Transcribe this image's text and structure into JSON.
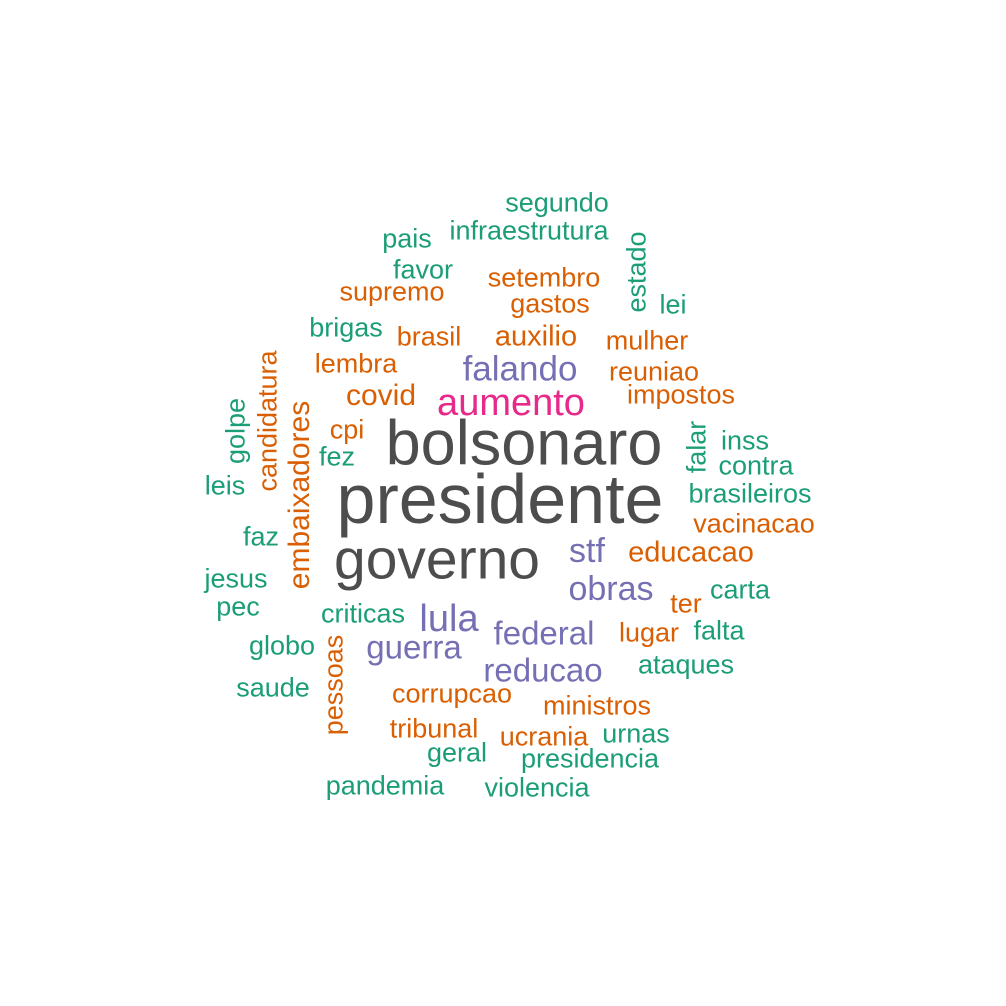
{
  "colors": {
    "dark": "#4d4d4d",
    "magenta": "#e7298a",
    "purple": "#7570b3",
    "orange": "#d95f02",
    "green": "#1b9e77"
  },
  "words": [
    {
      "text": "presidente",
      "color": "dark"
    },
    {
      "text": "bolsonaro",
      "color": "dark"
    },
    {
      "text": "governo",
      "color": "dark"
    },
    {
      "text": "aumento",
      "color": "magenta"
    },
    {
      "text": "falando",
      "color": "purple"
    },
    {
      "text": "stf",
      "color": "purple"
    },
    {
      "text": "lula",
      "color": "purple"
    },
    {
      "text": "obras",
      "color": "purple"
    },
    {
      "text": "federal",
      "color": "purple"
    },
    {
      "text": "guerra",
      "color": "purple"
    },
    {
      "text": "reducao",
      "color": "purple"
    },
    {
      "text": "embaixadores",
      "color": "orange"
    },
    {
      "text": "covid",
      "color": "orange"
    },
    {
      "text": "auxilio",
      "color": "orange"
    },
    {
      "text": "educacao",
      "color": "orange"
    },
    {
      "text": "setembro",
      "color": "orange"
    },
    {
      "text": "gastos",
      "color": "orange"
    },
    {
      "text": "supremo",
      "color": "orange"
    },
    {
      "text": "brasil",
      "color": "orange"
    },
    {
      "text": "mulher",
      "color": "orange"
    },
    {
      "text": "lembra",
      "color": "orange"
    },
    {
      "text": "reuniao",
      "color": "orange"
    },
    {
      "text": "impostos",
      "color": "orange"
    },
    {
      "text": "candidatura",
      "color": "orange"
    },
    {
      "text": "cpi",
      "color": "orange"
    },
    {
      "text": "vacinacao",
      "color": "orange"
    },
    {
      "text": "ter",
      "color": "orange"
    },
    {
      "text": "lugar",
      "color": "orange"
    },
    {
      "text": "pessoas",
      "color": "orange"
    },
    {
      "text": "corrupcao",
      "color": "orange"
    },
    {
      "text": "ministros",
      "color": "orange"
    },
    {
      "text": "tribunal",
      "color": "orange"
    },
    {
      "text": "ucrania",
      "color": "orange"
    },
    {
      "text": "segundo",
      "color": "green"
    },
    {
      "text": "infraestrutura",
      "color": "green"
    },
    {
      "text": "pais",
      "color": "green"
    },
    {
      "text": "estado",
      "color": "green"
    },
    {
      "text": "favor",
      "color": "green"
    },
    {
      "text": "lei",
      "color": "green"
    },
    {
      "text": "brigas",
      "color": "green"
    },
    {
      "text": "golpe",
      "color": "green"
    },
    {
      "text": "falar",
      "color": "green"
    },
    {
      "text": "inss",
      "color": "green"
    },
    {
      "text": "fez",
      "color": "green"
    },
    {
      "text": "contra",
      "color": "green"
    },
    {
      "text": "leis",
      "color": "green"
    },
    {
      "text": "brasileiros",
      "color": "green"
    },
    {
      "text": "faz",
      "color": "green"
    },
    {
      "text": "jesus",
      "color": "green"
    },
    {
      "text": "carta",
      "color": "green"
    },
    {
      "text": "pec",
      "color": "green"
    },
    {
      "text": "criticas",
      "color": "green"
    },
    {
      "text": "falta",
      "color": "green"
    },
    {
      "text": "globo",
      "color": "green"
    },
    {
      "text": "ataques",
      "color": "green"
    },
    {
      "text": "saude",
      "color": "green"
    },
    {
      "text": "urnas",
      "color": "green"
    },
    {
      "text": "geral",
      "color": "green"
    },
    {
      "text": "presidencia",
      "color": "green"
    },
    {
      "text": "pandemia",
      "color": "green"
    },
    {
      "text": "violencia",
      "color": "green"
    }
  ]
}
